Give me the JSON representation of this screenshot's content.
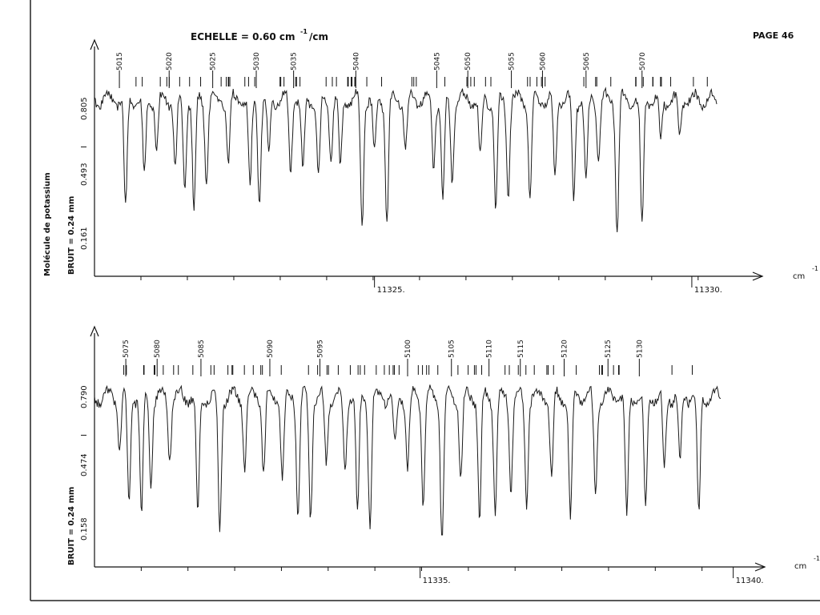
{
  "header": {
    "scale_label": "ECHELLE = 0.60 cm",
    "scale_exp": "-1",
    "scale_tail": "/cm",
    "page_label": "PAGE 46"
  },
  "molecule_label": "Molécule de potassium",
  "colors": {
    "ink": "#111111",
    "paper": "#ffffff"
  },
  "chart_data": [
    {
      "type": "line",
      "panel": "top",
      "ylabel": "BRUIT = 0.24 mm",
      "ymark": "I",
      "yticks": [
        "0.161",
        "0.493",
        "0.805"
      ],
      "xunit": "cm",
      "xunit_exp": "-1",
      "xticks": [
        {
          "label": "11325.",
          "pos": 0.45
        },
        {
          "label": "11330.",
          "pos": 0.96
        }
      ],
      "line_numbers": [
        {
          "n": "5015",
          "x": 0.04
        },
        {
          "n": "5020",
          "x": 0.12
        },
        {
          "n": "5025",
          "x": 0.19
        },
        {
          "n": "5030",
          "x": 0.26
        },
        {
          "n": "5035",
          "x": 0.32
        },
        {
          "n": "5040",
          "x": 0.42
        },
        {
          "n": "5045",
          "x": 0.55
        },
        {
          "n": "5050",
          "x": 0.6
        },
        {
          "n": "5055",
          "x": 0.67
        },
        {
          "n": "5060",
          "x": 0.72
        },
        {
          "n": "5065",
          "x": 0.79
        },
        {
          "n": "5070",
          "x": 0.88
        }
      ],
      "absorption_lines": [
        {
          "x": 0.05,
          "d": 0.78
        },
        {
          "x": 0.08,
          "d": 0.55
        },
        {
          "x": 0.1,
          "d": 0.35
        },
        {
          "x": 0.13,
          "d": 0.48
        },
        {
          "x": 0.145,
          "d": 0.6
        },
        {
          "x": 0.16,
          "d": 0.8
        },
        {
          "x": 0.18,
          "d": 0.55
        },
        {
          "x": 0.215,
          "d": 0.45
        },
        {
          "x": 0.25,
          "d": 0.62
        },
        {
          "x": 0.265,
          "d": 0.7
        },
        {
          "x": 0.28,
          "d": 0.4
        },
        {
          "x": 0.315,
          "d": 0.5
        },
        {
          "x": 0.335,
          "d": 0.52
        },
        {
          "x": 0.36,
          "d": 0.55
        },
        {
          "x": 0.38,
          "d": 0.38
        },
        {
          "x": 0.395,
          "d": 0.48
        },
        {
          "x": 0.43,
          "d": 0.88
        },
        {
          "x": 0.45,
          "d": 0.4
        },
        {
          "x": 0.47,
          "d": 0.85
        },
        {
          "x": 0.5,
          "d": 0.35
        },
        {
          "x": 0.545,
          "d": 0.45
        },
        {
          "x": 0.56,
          "d": 0.72
        },
        {
          "x": 0.575,
          "d": 0.55
        },
        {
          "x": 0.62,
          "d": 0.4
        },
        {
          "x": 0.645,
          "d": 0.78
        },
        {
          "x": 0.665,
          "d": 0.62
        },
        {
          "x": 0.7,
          "d": 0.7
        },
        {
          "x": 0.74,
          "d": 0.55
        },
        {
          "x": 0.77,
          "d": 0.7
        },
        {
          "x": 0.79,
          "d": 0.6
        },
        {
          "x": 0.81,
          "d": 0.4
        },
        {
          "x": 0.84,
          "d": 0.95
        },
        {
          "x": 0.88,
          "d": 0.92
        },
        {
          "x": 0.91,
          "d": 0.3
        },
        {
          "x": 0.94,
          "d": 0.25
        }
      ]
    },
    {
      "type": "line",
      "panel": "bottom",
      "ylabel": "BRUIT = 0.24 mm",
      "ymark": "I",
      "yticks": [
        "0.158",
        "0.474",
        "0.790"
      ],
      "xunit": "cm",
      "xunit_exp": "-1",
      "xticks": [
        {
          "label": "11335.",
          "pos": 0.52
        },
        {
          "label": "11340.",
          "pos": 1.02
        }
      ],
      "line_numbers": [
        {
          "n": "5075",
          "x": 0.05
        },
        {
          "n": "5080",
          "x": 0.1
        },
        {
          "n": "5085",
          "x": 0.17
        },
        {
          "n": "5090",
          "x": 0.28
        },
        {
          "n": "5095",
          "x": 0.36
        },
        {
          "n": "5100",
          "x": 0.5
        },
        {
          "n": "5105",
          "x": 0.57
        },
        {
          "n": "5110",
          "x": 0.63
        },
        {
          "n": "5115",
          "x": 0.68
        },
        {
          "n": "5120",
          "x": 0.75
        },
        {
          "n": "5125",
          "x": 0.82
        },
        {
          "n": "5130",
          "x": 0.87
        }
      ],
      "absorption_lines": [
        {
          "x": 0.04,
          "d": 0.35
        },
        {
          "x": 0.055,
          "d": 0.7
        },
        {
          "x": 0.075,
          "d": 0.82
        },
        {
          "x": 0.09,
          "d": 0.55
        },
        {
          "x": 0.12,
          "d": 0.4
        },
        {
          "x": 0.165,
          "d": 0.8
        },
        {
          "x": 0.2,
          "d": 0.9
        },
        {
          "x": 0.24,
          "d": 0.45
        },
        {
          "x": 0.27,
          "d": 0.5
        },
        {
          "x": 0.3,
          "d": 0.55
        },
        {
          "x": 0.325,
          "d": 0.8
        },
        {
          "x": 0.345,
          "d": 0.8
        },
        {
          "x": 0.37,
          "d": 0.45
        },
        {
          "x": 0.4,
          "d": 0.5
        },
        {
          "x": 0.42,
          "d": 0.8
        },
        {
          "x": 0.44,
          "d": 0.85
        },
        {
          "x": 0.48,
          "d": 0.35
        },
        {
          "x": 0.5,
          "d": 0.5
        },
        {
          "x": 0.525,
          "d": 0.7
        },
        {
          "x": 0.555,
          "d": 1.0
        },
        {
          "x": 0.585,
          "d": 0.55
        },
        {
          "x": 0.615,
          "d": 0.82
        },
        {
          "x": 0.64,
          "d": 0.75
        },
        {
          "x": 0.665,
          "d": 0.6
        },
        {
          "x": 0.69,
          "d": 0.7
        },
        {
          "x": 0.73,
          "d": 0.55
        },
        {
          "x": 0.76,
          "d": 0.82
        },
        {
          "x": 0.8,
          "d": 0.65
        },
        {
          "x": 0.85,
          "d": 0.82
        },
        {
          "x": 0.88,
          "d": 0.78
        },
        {
          "x": 0.91,
          "d": 0.5
        },
        {
          "x": 0.935,
          "d": 0.45
        },
        {
          "x": 0.965,
          "d": 0.82
        }
      ]
    }
  ]
}
